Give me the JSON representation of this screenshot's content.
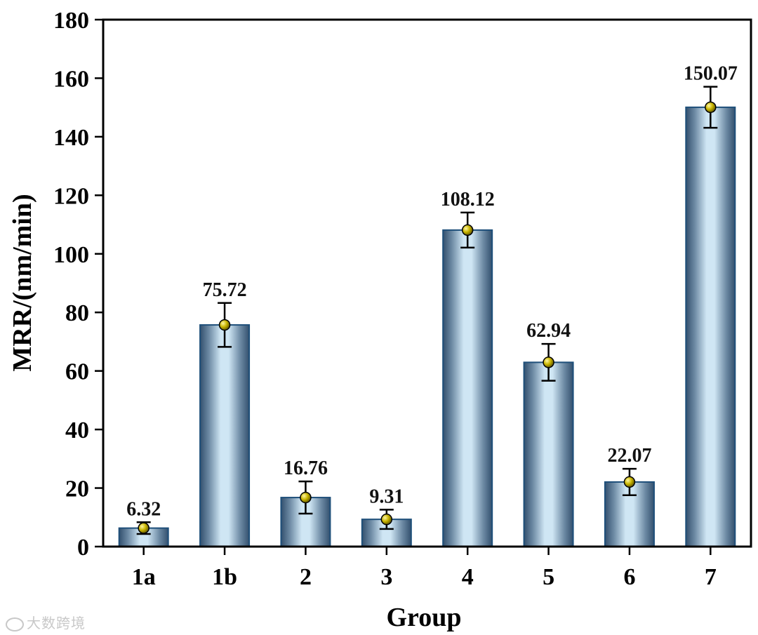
{
  "chart_data": {
    "type": "bar",
    "categories": [
      "1a",
      "1b",
      "2",
      "3",
      "4",
      "5",
      "6",
      "7"
    ],
    "values": [
      6.32,
      75.72,
      16.76,
      9.31,
      108.12,
      62.94,
      22.07,
      150.07
    ],
    "value_labels": [
      "6.32",
      "75.72",
      "16.76",
      "9.31",
      "108.12",
      "62.94",
      "22.07",
      "150.07"
    ],
    "errors": [
      2.0,
      7.5,
      5.5,
      3.3,
      6.0,
      6.3,
      4.5,
      7.0
    ],
    "xlabel": "Group",
    "ylabel": "MRR/(nm/min)",
    "ylim": [
      0,
      180
    ],
    "yticks": [
      0,
      20,
      40,
      60,
      80,
      100,
      120,
      140,
      160,
      180
    ],
    "ytick_labels": [
      "0",
      "20",
      "40",
      "60",
      "80",
      "100",
      "120",
      "140",
      "160",
      "180"
    ],
    "grid": false,
    "colors": {
      "bar_edge": "#1e4f7a",
      "bar_dark": "#33506e",
      "bar_light": "#cfe6f4",
      "marker": "#c8b400",
      "error": "#000000"
    }
  },
  "watermark": {
    "text": "大数跨境",
    "icon": "watermark-logo-icon"
  }
}
